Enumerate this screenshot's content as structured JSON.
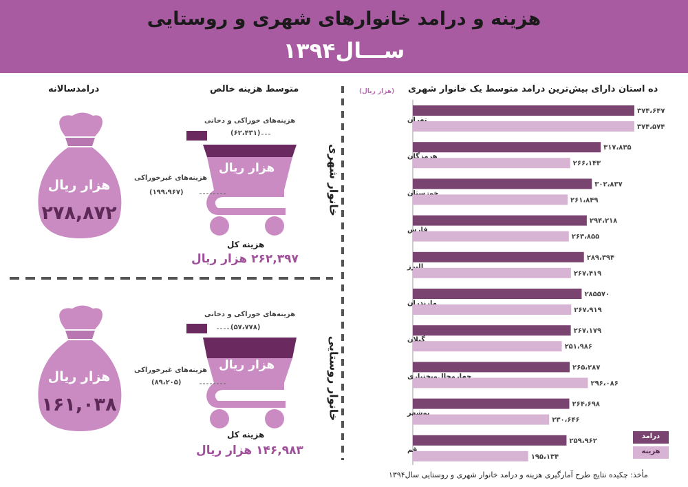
{
  "header": {
    "title": "هزینه و درامد خانوارهای شهری و روستایی",
    "year": "ســـال۱۳۹۴"
  },
  "left": {
    "income_heading": "درامدسالانه",
    "expense_heading": "متوسط هزینه خالص",
    "unit_label": "هزار ریال",
    "urban": {
      "label": "خانوار شهری",
      "annual_income": "۲۷۸,۸۷۲",
      "food_label": "هزینه‌های خوراکی و دخانی",
      "food_value": "(۶۲،۴۳۱)",
      "nonfood_label": "هزینه‌های غیرخوراکی",
      "nonfood_value": "(۱۹۹،۹۶۷)",
      "total_label": "هزینه کل",
      "total_value": "۲۶۲,۳۹۷ هزار ریال"
    },
    "rural": {
      "label": "خانوار روستایی",
      "annual_income": "۱۶۱,۰۳۸",
      "food_label": "هزینه‌های خوراکی و دخانی",
      "food_value": "(۵۷،۷۷۸)",
      "nonfood_label": "هزینه‌های غیرخوراکی",
      "nonfood_value": "(۸۹،۲۰۵)",
      "total_label": "هزینه کل",
      "total_value": "۱۴۶,۹۸۳ هزار ریال"
    }
  },
  "colors": {
    "header_bg": "#a95ba2",
    "income_bar": "#7a4470",
    "expense_bar": "#d8b4d4",
    "bag": "#c98bc2",
    "cart_dark": "#6b2a5f",
    "cart_light": "#c98bc2"
  },
  "chart_data": {
    "type": "bar",
    "orientation": "horizontal",
    "title": "ده استان دارای بیش‌ترین درامد متوسط یک خانوار شهری",
    "unit": "(هزار ریال)",
    "categories": [
      "تهران",
      "هرمزگان",
      "خوزستان",
      "فارس",
      "البرز",
      "مازندران",
      "گیلان",
      "چهارمحال‌وبختیاری",
      "بوشهر",
      "قم"
    ],
    "series": [
      {
        "name": "درامد",
        "values": [
          374647,
          317835,
          302837,
          294218,
          289394,
          285570,
          267179,
          265287,
          264698,
          259962
        ],
        "labels": [
          "۳۷۴،۶۴۷",
          "۳۱۷،۸۳۵",
          "۳۰۲،۸۳۷",
          "۲۹۴،۲۱۸",
          "۲۸۹،۳۹۴",
          "۲۸۵۵۷۰",
          "۲۶۷،۱۷۹",
          "۲۶۵،۲۸۷",
          "۲۶۴،۶۹۸",
          "۲۵۹،۹۶۲"
        ]
      },
      {
        "name": "هزینه",
        "values": [
          374574,
          266143,
          261849,
          263855,
          267419,
          267919,
          251986,
          296086,
          230646,
          195134
        ],
        "labels": [
          "۳۷۴،۵۷۴",
          "۲۶۶،۱۴۳",
          "۲۶۱،۸۴۹",
          "۲۶۳،۸۵۵",
          "۲۶۷،۴۱۹",
          "۲۶۷،۹۱۹",
          "۲۵۱،۹۸۶",
          "۲۹۶،۰۸۶",
          "۲۳۰،۶۴۶",
          "۱۹۵،۱۳۴"
        ]
      }
    ],
    "legend": "bottom-right"
  },
  "footer": {
    "source": "مأخذ: چکیده نتایج طرح آمارگیری هزینه و درامد خانوار شهری و روستایی سال۱۳۹۴"
  }
}
